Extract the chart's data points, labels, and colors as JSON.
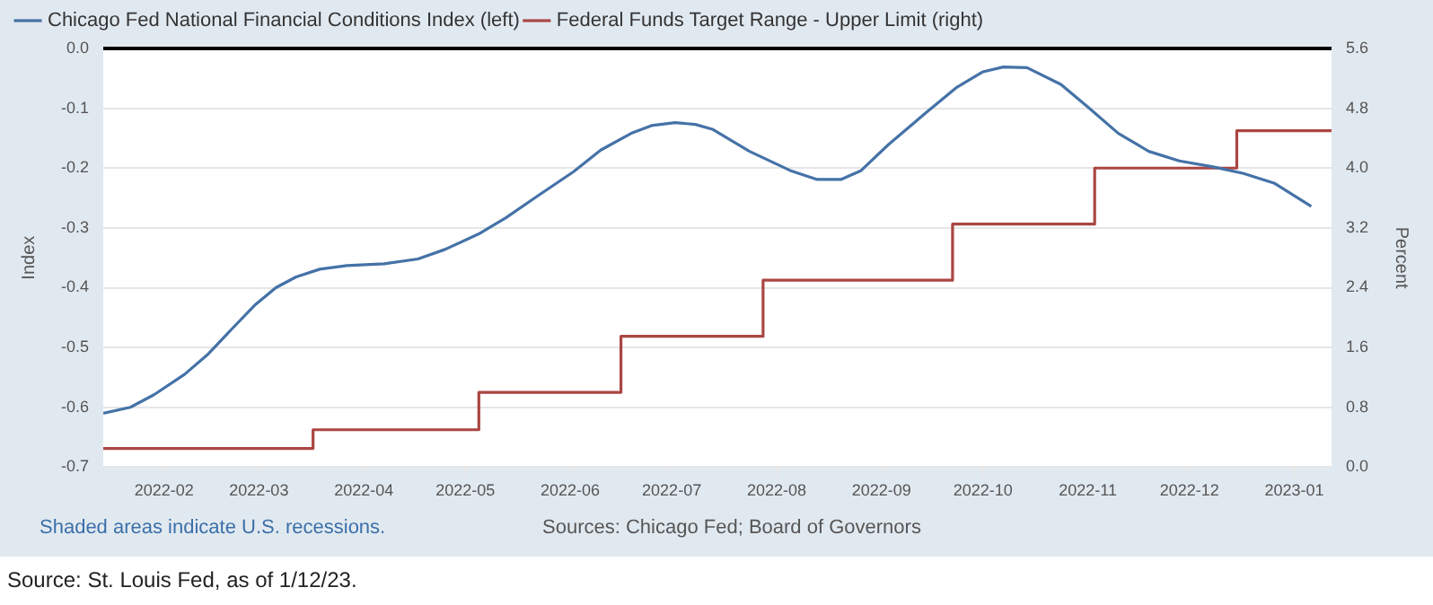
{
  "chart_data": {
    "type": "line",
    "xlim": [
      "2022-01-14",
      "2023-01-12"
    ],
    "xticks": [
      "2022-02",
      "2022-03",
      "2022-04",
      "2022-05",
      "2022-06",
      "2022-07",
      "2022-08",
      "2022-09",
      "2022-10",
      "2022-11",
      "2022-12",
      "2023-01"
    ],
    "ylim": [
      -0.7,
      0.0
    ],
    "yticks": [
      -0.7,
      -0.6,
      -0.5,
      -0.4,
      -0.3,
      -0.2,
      -0.1,
      {
        "value": 0,
        "label": "0.0"
      }
    ],
    "y2lim": [
      0.0,
      5.6
    ],
    "y2ticks": [
      {
        "value": 0,
        "label": "0.0"
      },
      0.8,
      1.6,
      2.4,
      3.2,
      {
        "value": 4,
        "label": "4.0"
      },
      4.8,
      5.6
    ],
    "ylabel": "Index",
    "y2label": "Percent",
    "grid": "y",
    "legend": "top left",
    "marker": "none",
    "line_style": "solid",
    "ref_lines": [
      {
        "axis": "y",
        "value": 0.0,
        "color": "#000000"
      }
    ],
    "series": [
      {
        "name": "Chicago Fed National Financial Conditions Index (left)",
        "color": "#4572a7",
        "x": [
          "2022-01-14",
          "2022-01-22",
          "2022-01-29",
          "2022-02-07",
          "2022-02-14",
          "2022-02-21",
          "2022-02-28",
          "2022-03-06",
          "2022-03-12",
          "2022-03-19",
          "2022-03-27",
          "2022-04-07",
          "2022-04-17",
          "2022-04-25",
          "2022-05-05",
          "2022-05-13",
          "2022-05-22",
          "2022-06-02",
          "2022-06-10",
          "2022-06-19",
          "2022-06-25",
          "2022-07-02",
          "2022-07-08",
          "2022-07-13",
          "2022-07-24",
          "2022-08-05",
          "2022-08-13",
          "2022-08-20",
          "2022-08-26",
          "2022-09-03",
          "2022-09-14",
          "2022-09-23",
          "2022-10-01",
          "2022-10-07",
          "2022-10-14",
          "2022-10-24",
          "2022-11-01",
          "2022-11-10",
          "2022-11-19",
          "2022-11-28",
          "2022-12-08",
          "2022-12-17",
          "2022-12-26",
          "2023-01-06"
        ],
        "values": [
          -0.61,
          -0.6,
          -0.579,
          -0.545,
          -0.511,
          -0.469,
          -0.428,
          -0.4,
          -0.382,
          -0.369,
          -0.363,
          -0.36,
          -0.352,
          -0.336,
          -0.31,
          -0.283,
          -0.248,
          -0.206,
          -0.17,
          -0.142,
          -0.129,
          -0.124,
          -0.127,
          -0.135,
          -0.172,
          -0.204,
          -0.219,
          -0.219,
          -0.204,
          -0.161,
          -0.108,
          -0.066,
          -0.039,
          -0.031,
          -0.032,
          -0.06,
          -0.098,
          -0.142,
          -0.172,
          -0.188,
          -0.198,
          -0.209,
          -0.225,
          -0.264
        ]
      },
      {
        "name": "Federal Funds Target Range - Upper Limit (right)",
        "type": "step",
        "axis": "y2",
        "color": "#aa4643",
        "x": [
          "2022-01-14",
          "2022-03-17",
          "2022-05-05",
          "2022-06-16",
          "2022-07-28",
          "2022-09-22",
          "2022-11-03",
          "2022-12-15",
          "2023-01-12"
        ],
        "values": [
          0.25,
          0.5,
          1.0,
          1.75,
          2.5,
          3.25,
          4.0,
          4.5,
          4.5
        ]
      }
    ],
    "annotations": [
      "Shaded areas indicate U.S. recessions.",
      "Sources: Chicago Fed; Board of Governors",
      "Source: St. Louis Fed, as of 1/12/23."
    ]
  }
}
